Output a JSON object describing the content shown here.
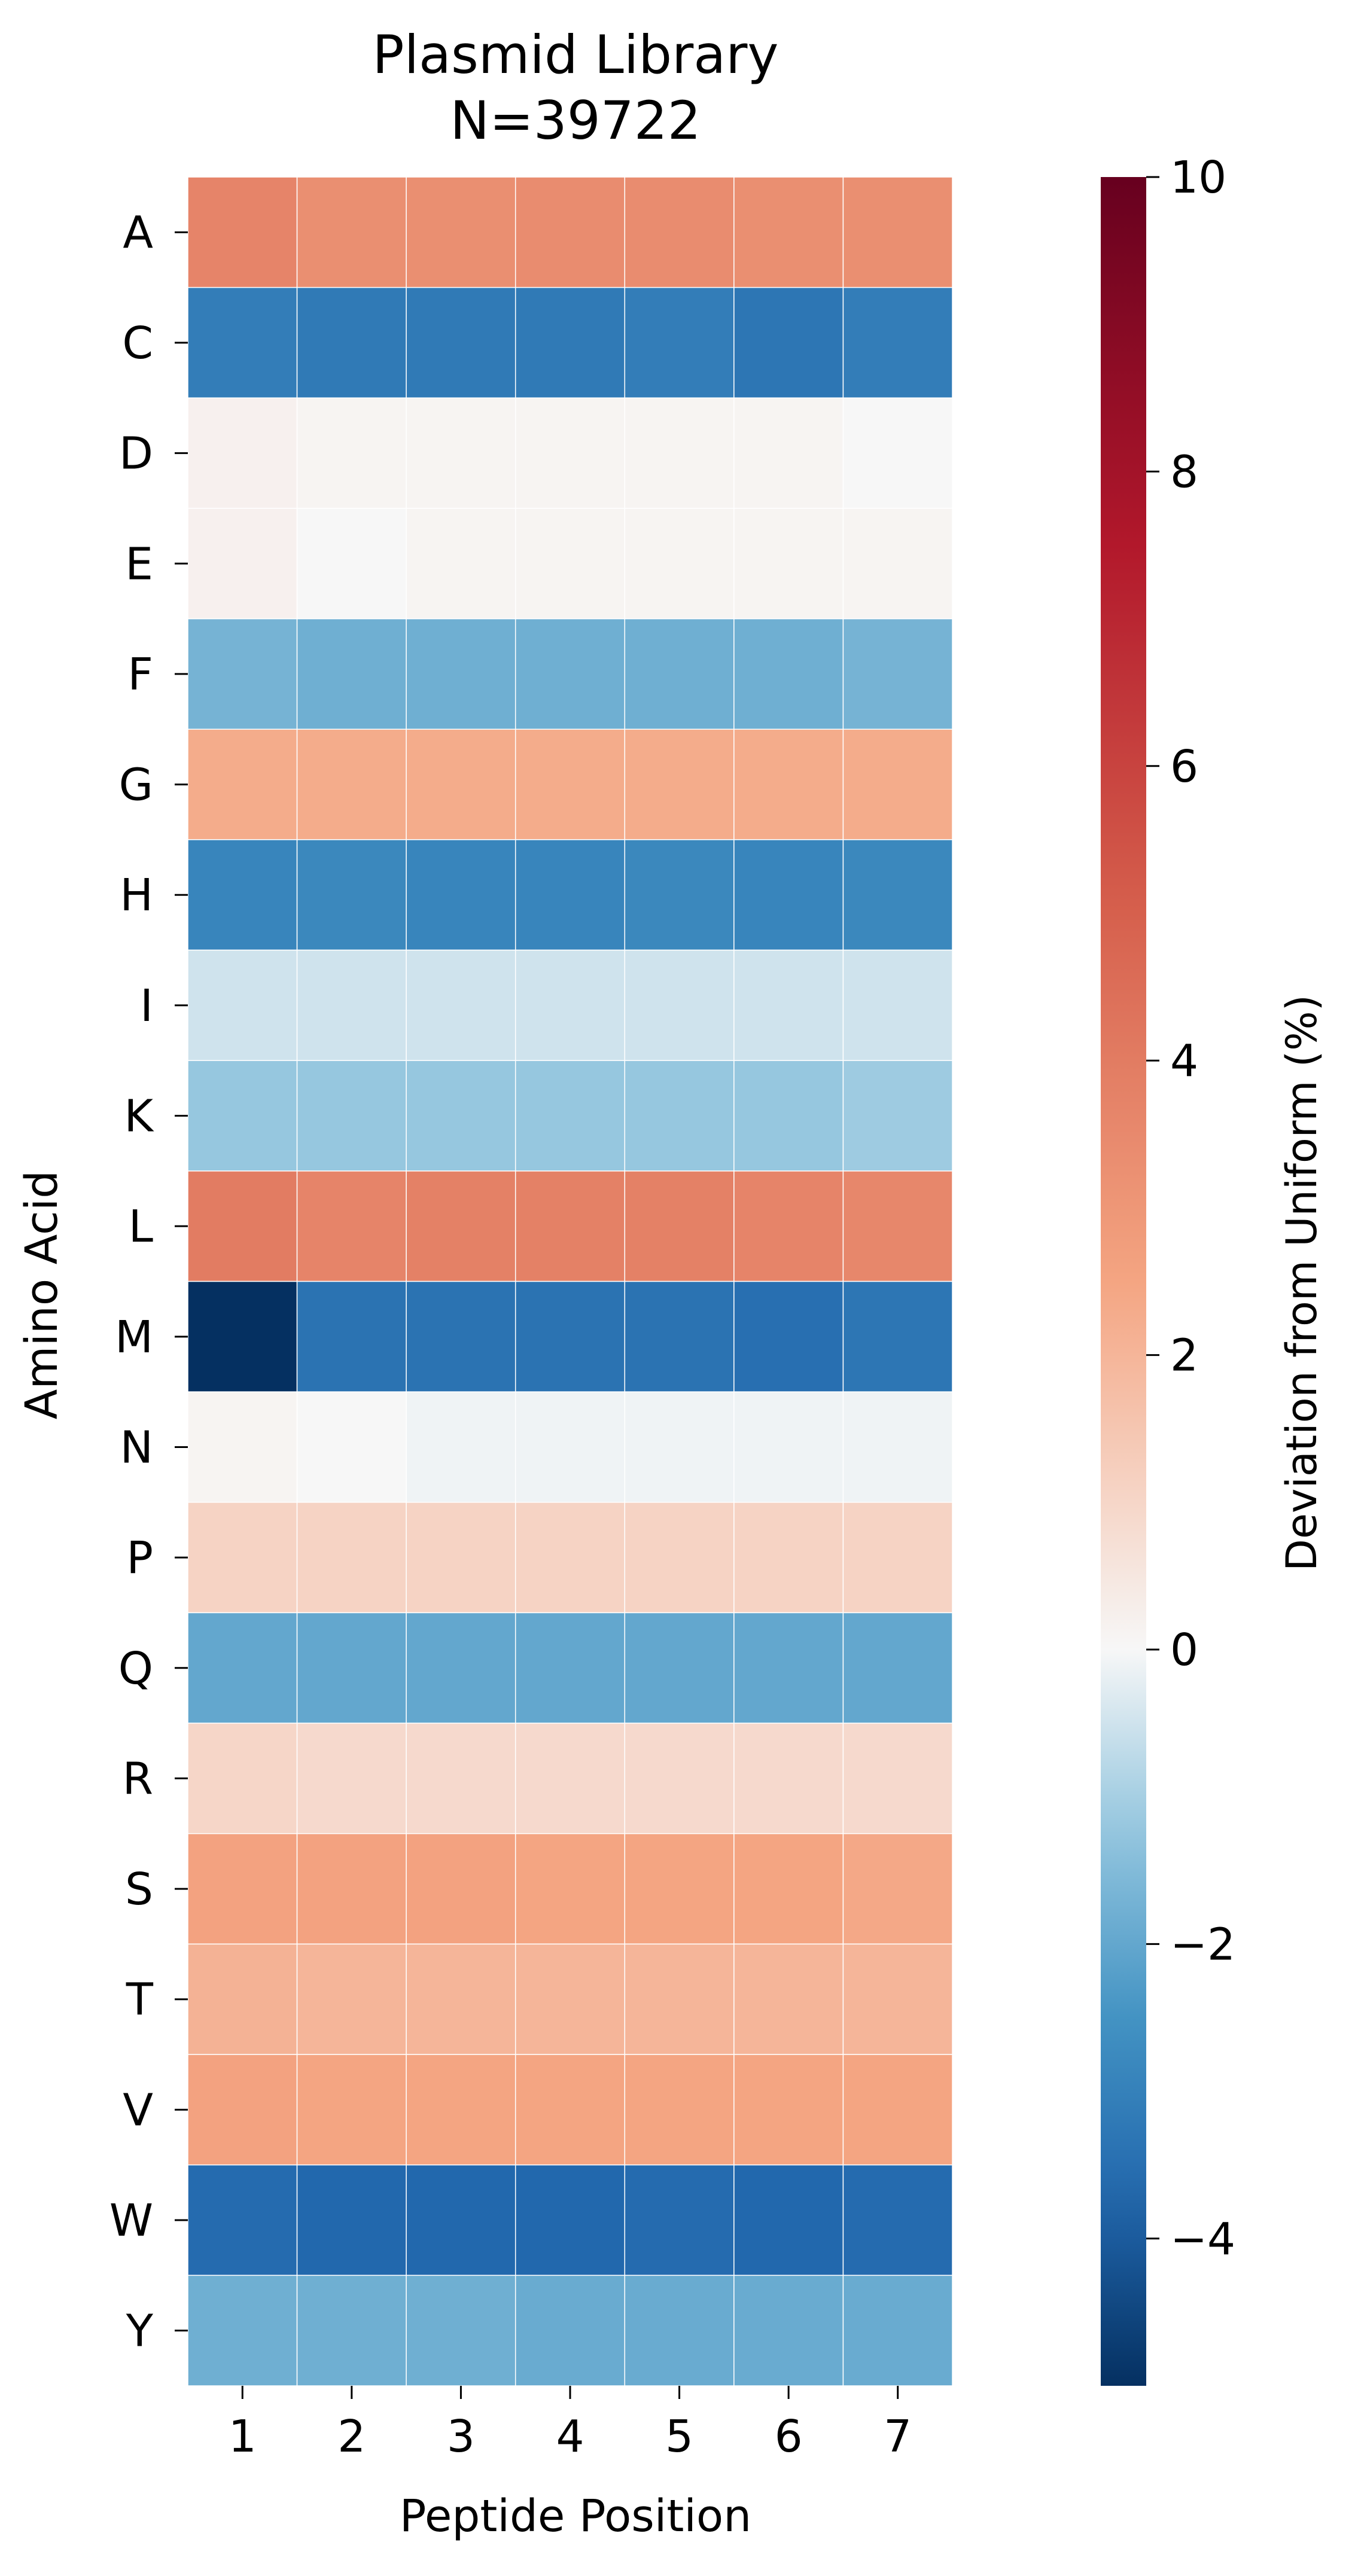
{
  "chart_data": {
    "type": "heatmap",
    "title": "Plasmid Library",
    "subtitle": "N=39722",
    "xlabel": "Peptide Position",
    "ylabel": "Amino Acid",
    "colorbar_label": "Deviation from Uniform (%)",
    "x_categories": [
      "1",
      "2",
      "3",
      "4",
      "5",
      "6",
      "7"
    ],
    "y_categories": [
      "A",
      "C",
      "D",
      "E",
      "F",
      "G",
      "H",
      "I",
      "K",
      "L",
      "M",
      "N",
      "P",
      "Q",
      "R",
      "S",
      "T",
      "V",
      "W",
      "Y"
    ],
    "values": [
      [
        3.7,
        3.3,
        3.3,
        3.4,
        3.4,
        3.3,
        3.3
      ],
      [
        -3.1,
        -3.2,
        -3.2,
        -3.2,
        -3.1,
        -3.3,
        -3.1
      ],
      [
        0.2,
        0.1,
        0.1,
        0.1,
        0.1,
        0.1,
        0.0
      ],
      [
        0.2,
        0.0,
        0.1,
        0.1,
        0.1,
        0.1,
        0.1
      ],
      [
        -1.7,
        -1.8,
        -1.8,
        -1.8,
        -1.8,
        -1.8,
        -1.7
      ],
      [
        2.3,
        2.3,
        2.3,
        2.3,
        2.3,
        2.3,
        2.3
      ],
      [
        -2.9,
        -2.8,
        -2.9,
        -2.9,
        -2.8,
        -2.9,
        -2.8
      ],
      [
        -0.5,
        -0.5,
        -0.5,
        -0.5,
        -0.5,
        -0.5,
        -0.5
      ],
      [
        -1.2,
        -1.2,
        -1.2,
        -1.2,
        -1.2,
        -1.2,
        -1.1
      ],
      [
        4.0,
        3.7,
        3.8,
        3.8,
        3.8,
        3.7,
        3.6
      ],
      [
        -5.0,
        -3.4,
        -3.4,
        -3.4,
        -3.4,
        -3.5,
        -3.3
      ],
      [
        0.1,
        0.0,
        -0.1,
        -0.1,
        -0.1,
        -0.1,
        -0.1
      ],
      [
        1.1,
        1.1,
        1.1,
        1.1,
        1.1,
        1.1,
        1.1
      ],
      [
        -2.0,
        -2.0,
        -2.0,
        -2.0,
        -2.0,
        -2.0,
        -2.0
      ],
      [
        1.0,
        0.9,
        0.9,
        0.9,
        0.9,
        0.9,
        0.9
      ],
      [
        2.6,
        2.6,
        2.6,
        2.5,
        2.5,
        2.5,
        2.4
      ],
      [
        2.1,
        2.0,
        2.0,
        2.0,
        2.0,
        2.0,
        2.0
      ],
      [
        2.6,
        2.5,
        2.5,
        2.5,
        2.5,
        2.5,
        2.5
      ],
      [
        -3.6,
        -3.7,
        -3.7,
        -3.7,
        -3.6,
        -3.7,
        -3.6
      ],
      [
        -1.8,
        -1.8,
        -1.8,
        -1.9,
        -1.9,
        -1.9,
        -1.9
      ]
    ],
    "colorbar": {
      "min": -5.0,
      "max": 10,
      "center": 0,
      "colormap": "RdBu_r",
      "ticks": [
        10,
        8,
        6,
        4,
        2,
        0,
        -2,
        -4
      ],
      "tick_labels": [
        "10",
        "8",
        "6",
        "4",
        "2",
        "0",
        "−2",
        "−4"
      ]
    },
    "grid": false
  }
}
